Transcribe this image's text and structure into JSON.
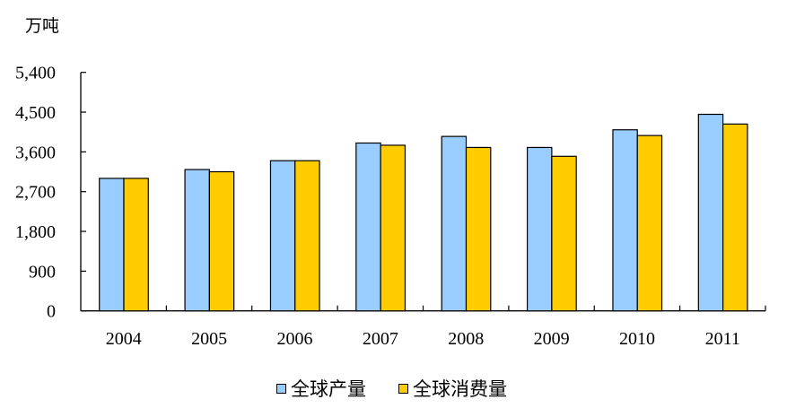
{
  "chart_data": {
    "type": "bar",
    "title": "",
    "unit_label": "万吨",
    "xlabel": "",
    "ylabel": "万吨",
    "categories": [
      "2004",
      "2005",
      "2006",
      "2007",
      "2008",
      "2009",
      "2010",
      "2011"
    ],
    "series": [
      {
        "name": "全球产量",
        "color": "#99CCFF",
        "values": [
          3000,
          3200,
          3400,
          3800,
          3950,
          3700,
          4100,
          4450
        ]
      },
      {
        "name": "全球消费量",
        "color": "#FFCC00",
        "values": [
          3000,
          3150,
          3400,
          3750,
          3700,
          3500,
          3970,
          4230
        ]
      }
    ],
    "ylim": [
      0,
      5400
    ],
    "yticks": [
      0,
      900,
      1800,
      2700,
      3600,
      4500,
      5400
    ],
    "ytick_labels": [
      "0",
      "900",
      "1,800",
      "2,700",
      "3,600",
      "4,500",
      "5,400"
    ],
    "grid": false,
    "legend_position": "bottom"
  }
}
